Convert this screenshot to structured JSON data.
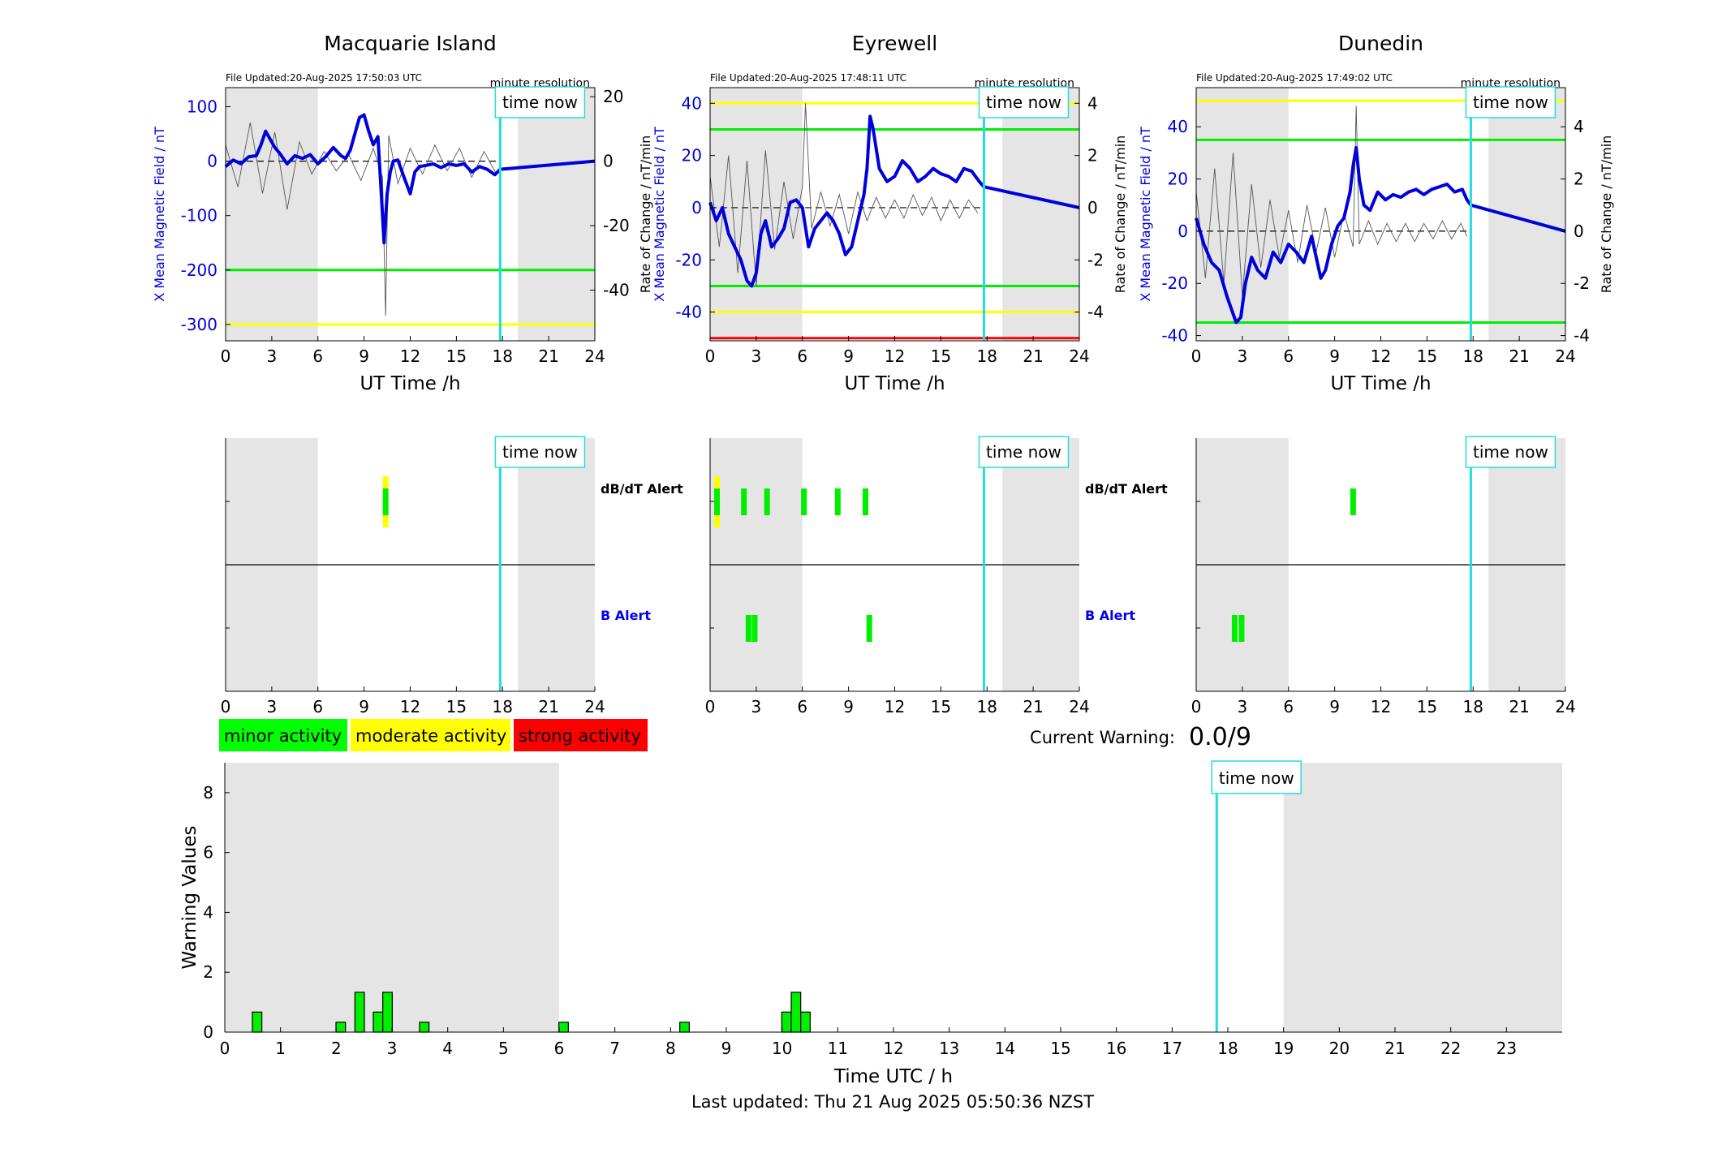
{
  "page": {
    "last_updated": "Last updated: Thu 21 Aug 2025 05:50:36 NZST",
    "current_warning_label": "Current Warning:",
    "current_warning_value": "0.0/9",
    "time_now_label": "time now",
    "minute_resolution_label": "minute resolution",
    "legend": [
      {
        "label": "minor activity",
        "color": "#00ff00"
      },
      {
        "label": "moderate activity",
        "color": "#ffff00"
      },
      {
        "label": "strong activity",
        "color": "#ff0000"
      }
    ],
    "alert_row_labels": {
      "dbdt": "dB/dT Alert",
      "b": "B Alert"
    },
    "colors": {
      "field_line": "#0000dd",
      "rate_line": "#555555",
      "time_now": "#22dddd",
      "night_shade": "#e5e5e5",
      "green": "#00ee00",
      "yellow": "#ffff00",
      "red": "#ff0000"
    }
  },
  "chart_data": [
    {
      "type": "line",
      "title": "Macquarie Island",
      "file_updated": "File Updated:20-Aug-2025 17:50:03 UTC",
      "xlabel": "UT Time /h",
      "ylabel": "X Mean Magnetic Field / nT",
      "ylabel_right": "Rate of Change / nT/min",
      "xlim": [
        0,
        24
      ],
      "xticks": [
        0,
        3,
        6,
        9,
        12,
        15,
        18,
        21,
        24
      ],
      "ylim": [
        -330,
        135
      ],
      "yticks": [
        -300,
        -200,
        -100,
        0,
        100
      ],
      "ylim_right": [
        -55.7,
        22.8
      ],
      "yticks_right": [
        -40,
        -20,
        0,
        20
      ],
      "night_shading": [
        [
          0,
          6
        ],
        [
          19,
          24
        ]
      ],
      "time_now": 17.85,
      "threshold_lines": [
        {
          "y": -200,
          "color": "green"
        },
        {
          "y": -300,
          "color": "yellow"
        }
      ],
      "field_series": {
        "x": [
          0,
          0.5,
          1,
          1.5,
          2,
          2.3,
          2.6,
          2.9,
          3.2,
          3.5,
          4,
          4.5,
          5,
          5.5,
          6,
          6.5,
          7,
          7.5,
          7.8,
          8.1,
          8.4,
          8.7,
          9,
          9.3,
          9.6,
          9.9,
          10.1,
          10.3,
          10.5,
          10.7,
          10.9,
          11.2,
          11.6,
          12,
          12.3,
          12.6,
          13,
          13.5,
          14,
          14.5,
          15,
          15.5,
          16,
          16.5,
          17,
          17.5,
          17.85,
          24
        ],
        "y": [
          -10,
          2,
          -5,
          8,
          10,
          30,
          55,
          40,
          25,
          15,
          -5,
          10,
          5,
          12,
          -5,
          8,
          25,
          10,
          5,
          20,
          50,
          80,
          85,
          55,
          30,
          45,
          -50,
          -150,
          -60,
          -20,
          0,
          2,
          -30,
          -60,
          -20,
          -10,
          -8,
          -5,
          -12,
          -5,
          -8,
          -5,
          -20,
          -10,
          -15,
          -25,
          -15,
          0
        ]
      },
      "rate_series": {
        "x": [
          0,
          0.8,
          1.6,
          2.4,
          3.2,
          4,
          4.8,
          5.6,
          6.4,
          7.2,
          8,
          8.8,
          9.6,
          10.2,
          10.4,
          10.6,
          11.2,
          12,
          12.8,
          13.6,
          14.4,
          15.2,
          16,
          16.8,
          17.6
        ],
        "y": [
          5,
          -8,
          12,
          -10,
          9,
          -15,
          6,
          -4,
          3,
          -3,
          2,
          -6,
          4,
          -5,
          -48,
          8,
          -7,
          4,
          -4,
          5,
          -3,
          4,
          -5,
          3,
          -4
        ]
      }
    },
    {
      "type": "line",
      "title": "Eyrewell",
      "file_updated": "File Updated:20-Aug-2025 17:48:11 UTC",
      "xlabel": "UT Time /h",
      "ylabel": "X Mean Magnetic Field / nT",
      "ylabel_right": "Rate of Change / nT/min",
      "xlim": [
        0,
        24
      ],
      "xticks": [
        0,
        3,
        6,
        9,
        12,
        15,
        18,
        21,
        24
      ],
      "ylim": [
        -51,
        46
      ],
      "yticks": [
        -40,
        -20,
        0,
        20,
        40
      ],
      "ylim_right": [
        -5.1,
        4.6
      ],
      "yticks_right": [
        -4,
        -2,
        0,
        2,
        4
      ],
      "night_shading": [
        [
          0,
          6
        ],
        [
          19,
          24
        ]
      ],
      "time_now": 17.8,
      "threshold_lines": [
        {
          "y": 40,
          "color": "yellow"
        },
        {
          "y": 30,
          "color": "green"
        },
        {
          "y": -30,
          "color": "green"
        },
        {
          "y": -40,
          "color": "yellow"
        },
        {
          "y": -50,
          "color": "red"
        }
      ],
      "field_series": {
        "x": [
          0,
          0.4,
          0.8,
          1.2,
          1.6,
          2,
          2.4,
          2.7,
          3,
          3.3,
          3.6,
          4,
          4.4,
          4.8,
          5.2,
          5.6,
          6,
          6.4,
          6.8,
          7.2,
          7.6,
          8,
          8.4,
          8.8,
          9.2,
          9.6,
          10,
          10.2,
          10.4,
          10.6,
          11,
          11.5,
          12,
          12.5,
          13,
          13.5,
          14,
          14.5,
          15,
          15.5,
          16,
          16.5,
          17,
          17.5,
          17.8,
          24
        ],
        "y": [
          2,
          -5,
          0,
          -10,
          -15,
          -20,
          -28,
          -30,
          -25,
          -10,
          -5,
          -15,
          -12,
          -8,
          2,
          3,
          0,
          -15,
          -8,
          -5,
          -2,
          -5,
          -10,
          -18,
          -15,
          -5,
          5,
          15,
          35,
          30,
          15,
          10,
          12,
          18,
          15,
          10,
          12,
          15,
          13,
          12,
          10,
          15,
          14,
          10,
          8,
          0
        ]
      },
      "rate_series": {
        "x": [
          0,
          0.6,
          1.2,
          1.8,
          2.4,
          3,
          3.6,
          4.2,
          4.8,
          5.4,
          6,
          6.2,
          6.6,
          7.2,
          7.8,
          8.4,
          9,
          9.6,
          10.2,
          10.8,
          11.4,
          12,
          12.6,
          13.2,
          13.8,
          14.4,
          15,
          15.6,
          16.2,
          16.8,
          17.4
        ],
        "y": [
          1.2,
          -1.5,
          2.0,
          -2.5,
          1.8,
          -3.0,
          2.2,
          -1.6,
          1.0,
          -1.2,
          0.8,
          4.0,
          -0.8,
          0.6,
          -0.7,
          0.5,
          -1.0,
          0.6,
          -0.5,
          0.4,
          -0.4,
          0.3,
          -0.4,
          0.5,
          -0.3,
          0.4,
          -0.5,
          0.3,
          -0.4,
          0.3,
          -0.2
        ]
      }
    },
    {
      "type": "line",
      "title": "Dunedin",
      "file_updated": "File Updated:20-Aug-2025 17:49:02 UTC",
      "xlabel": "UT Time /h",
      "ylabel": "X Mean Magnetic Field / nT",
      "ylabel_right": "Rate of Change / nT/min",
      "xlim": [
        0,
        24
      ],
      "xticks": [
        0,
        3,
        6,
        9,
        12,
        15,
        18,
        21,
        24
      ],
      "ylim": [
        -42,
        55
      ],
      "yticks": [
        -40,
        -20,
        0,
        20,
        40
      ],
      "ylim_right": [
        -4.2,
        5.5
      ],
      "yticks_right": [
        -4,
        -2,
        0,
        2,
        4
      ],
      "night_shading": [
        [
          0,
          6
        ],
        [
          19,
          24
        ]
      ],
      "time_now": 17.85,
      "threshold_lines": [
        {
          "y": 50,
          "color": "yellow"
        },
        {
          "y": 35,
          "color": "green"
        },
        {
          "y": -35,
          "color": "green"
        }
      ],
      "field_series": {
        "x": [
          0,
          0.5,
          1,
          1.5,
          2,
          2.3,
          2.6,
          2.9,
          3.2,
          3.6,
          4,
          4.5,
          5,
          5.5,
          6,
          6.5,
          7,
          7.5,
          7.8,
          8.1,
          8.4,
          8.8,
          9.2,
          9.6,
          10,
          10.2,
          10.4,
          10.6,
          10.9,
          11.3,
          11.8,
          12.3,
          12.8,
          13.3,
          13.8,
          14.3,
          14.8,
          15.3,
          15.8,
          16.3,
          16.8,
          17.3,
          17.6,
          17.85,
          24
        ],
        "y": [
          5,
          -5,
          -12,
          -15,
          -25,
          -30,
          -35,
          -33,
          -20,
          -10,
          -15,
          -18,
          -8,
          -12,
          -5,
          -8,
          -12,
          -2,
          -10,
          -18,
          -15,
          -5,
          2,
          5,
          15,
          25,
          32,
          20,
          10,
          8,
          15,
          12,
          14,
          13,
          15,
          16,
          14,
          16,
          17,
          18,
          15,
          16,
          12,
          10,
          0
        ]
      },
      "rate_series": {
        "x": [
          0,
          0.6,
          1.2,
          1.8,
          2.4,
          3,
          3.6,
          4.2,
          4.8,
          5.4,
          6,
          6.6,
          7.2,
          7.8,
          8.4,
          9,
          9.6,
          10.2,
          10.4,
          10.6,
          11.2,
          11.8,
          12.4,
          13,
          13.6,
          14.2,
          14.8,
          15.4,
          16,
          16.6,
          17.2,
          17.6
        ],
        "y": [
          1.5,
          -1.8,
          2.4,
          -2.0,
          3.0,
          -2.5,
          1.8,
          -1.4,
          1.2,
          -1.0,
          0.8,
          -1.2,
          1.0,
          -0.8,
          0.9,
          -1.0,
          0.7,
          -0.6,
          4.8,
          -0.5,
          0.4,
          -0.5,
          0.3,
          -0.4,
          0.3,
          -0.4,
          0.3,
          -0.3,
          0.4,
          -0.3,
          0.3,
          -0.2
        ]
      }
    },
    {
      "type": "bar",
      "title": "",
      "xlabel": "Time UTC / h",
      "ylabel": "Warning Values",
      "xlim": [
        0,
        24
      ],
      "xticks": [
        0,
        1,
        2,
        3,
        4,
        5,
        6,
        7,
        8,
        9,
        10,
        11,
        12,
        13,
        14,
        15,
        16,
        17,
        18,
        19,
        20,
        21,
        22,
        23
      ],
      "ylim": [
        0,
        9
      ],
      "yticks": [
        0,
        2,
        4,
        6,
        8
      ],
      "night_shading": [
        [
          0,
          6
        ],
        [
          19,
          24
        ]
      ],
      "time_now": 17.8,
      "bar_width": 0.17,
      "x": [
        0.58,
        2.08,
        2.42,
        2.75,
        2.92,
        3.58,
        6.08,
        8.25,
        10.08,
        10.25,
        10.42
      ],
      "values": [
        0.67,
        0.33,
        1.33,
        0.67,
        1.33,
        0.33,
        0.33,
        0.33,
        0.67,
        1.33,
        0.67
      ]
    }
  ],
  "alert_data": [
    {
      "dbdt": [
        {
          "x": 10.4,
          "level": "moderate"
        }
      ],
      "b": []
    },
    {
      "dbdt": [
        {
          "x": 0.45,
          "level": "moderate"
        },
        {
          "x": 2.2,
          "level": "minor"
        },
        {
          "x": 3.7,
          "level": "minor"
        },
        {
          "x": 6.1,
          "level": "minor"
        },
        {
          "x": 8.3,
          "level": "minor"
        },
        {
          "x": 10.1,
          "level": "minor"
        }
      ],
      "b": [
        {
          "x": 2.5,
          "level": "minor"
        },
        {
          "x": 2.9,
          "level": "minor"
        },
        {
          "x": 10.35,
          "level": "minor"
        }
      ]
    },
    {
      "dbdt": [
        {
          "x": 10.2,
          "level": "minor"
        }
      ],
      "b": [
        {
          "x": 2.5,
          "level": "minor"
        },
        {
          "x": 2.95,
          "level": "minor"
        }
      ]
    }
  ]
}
